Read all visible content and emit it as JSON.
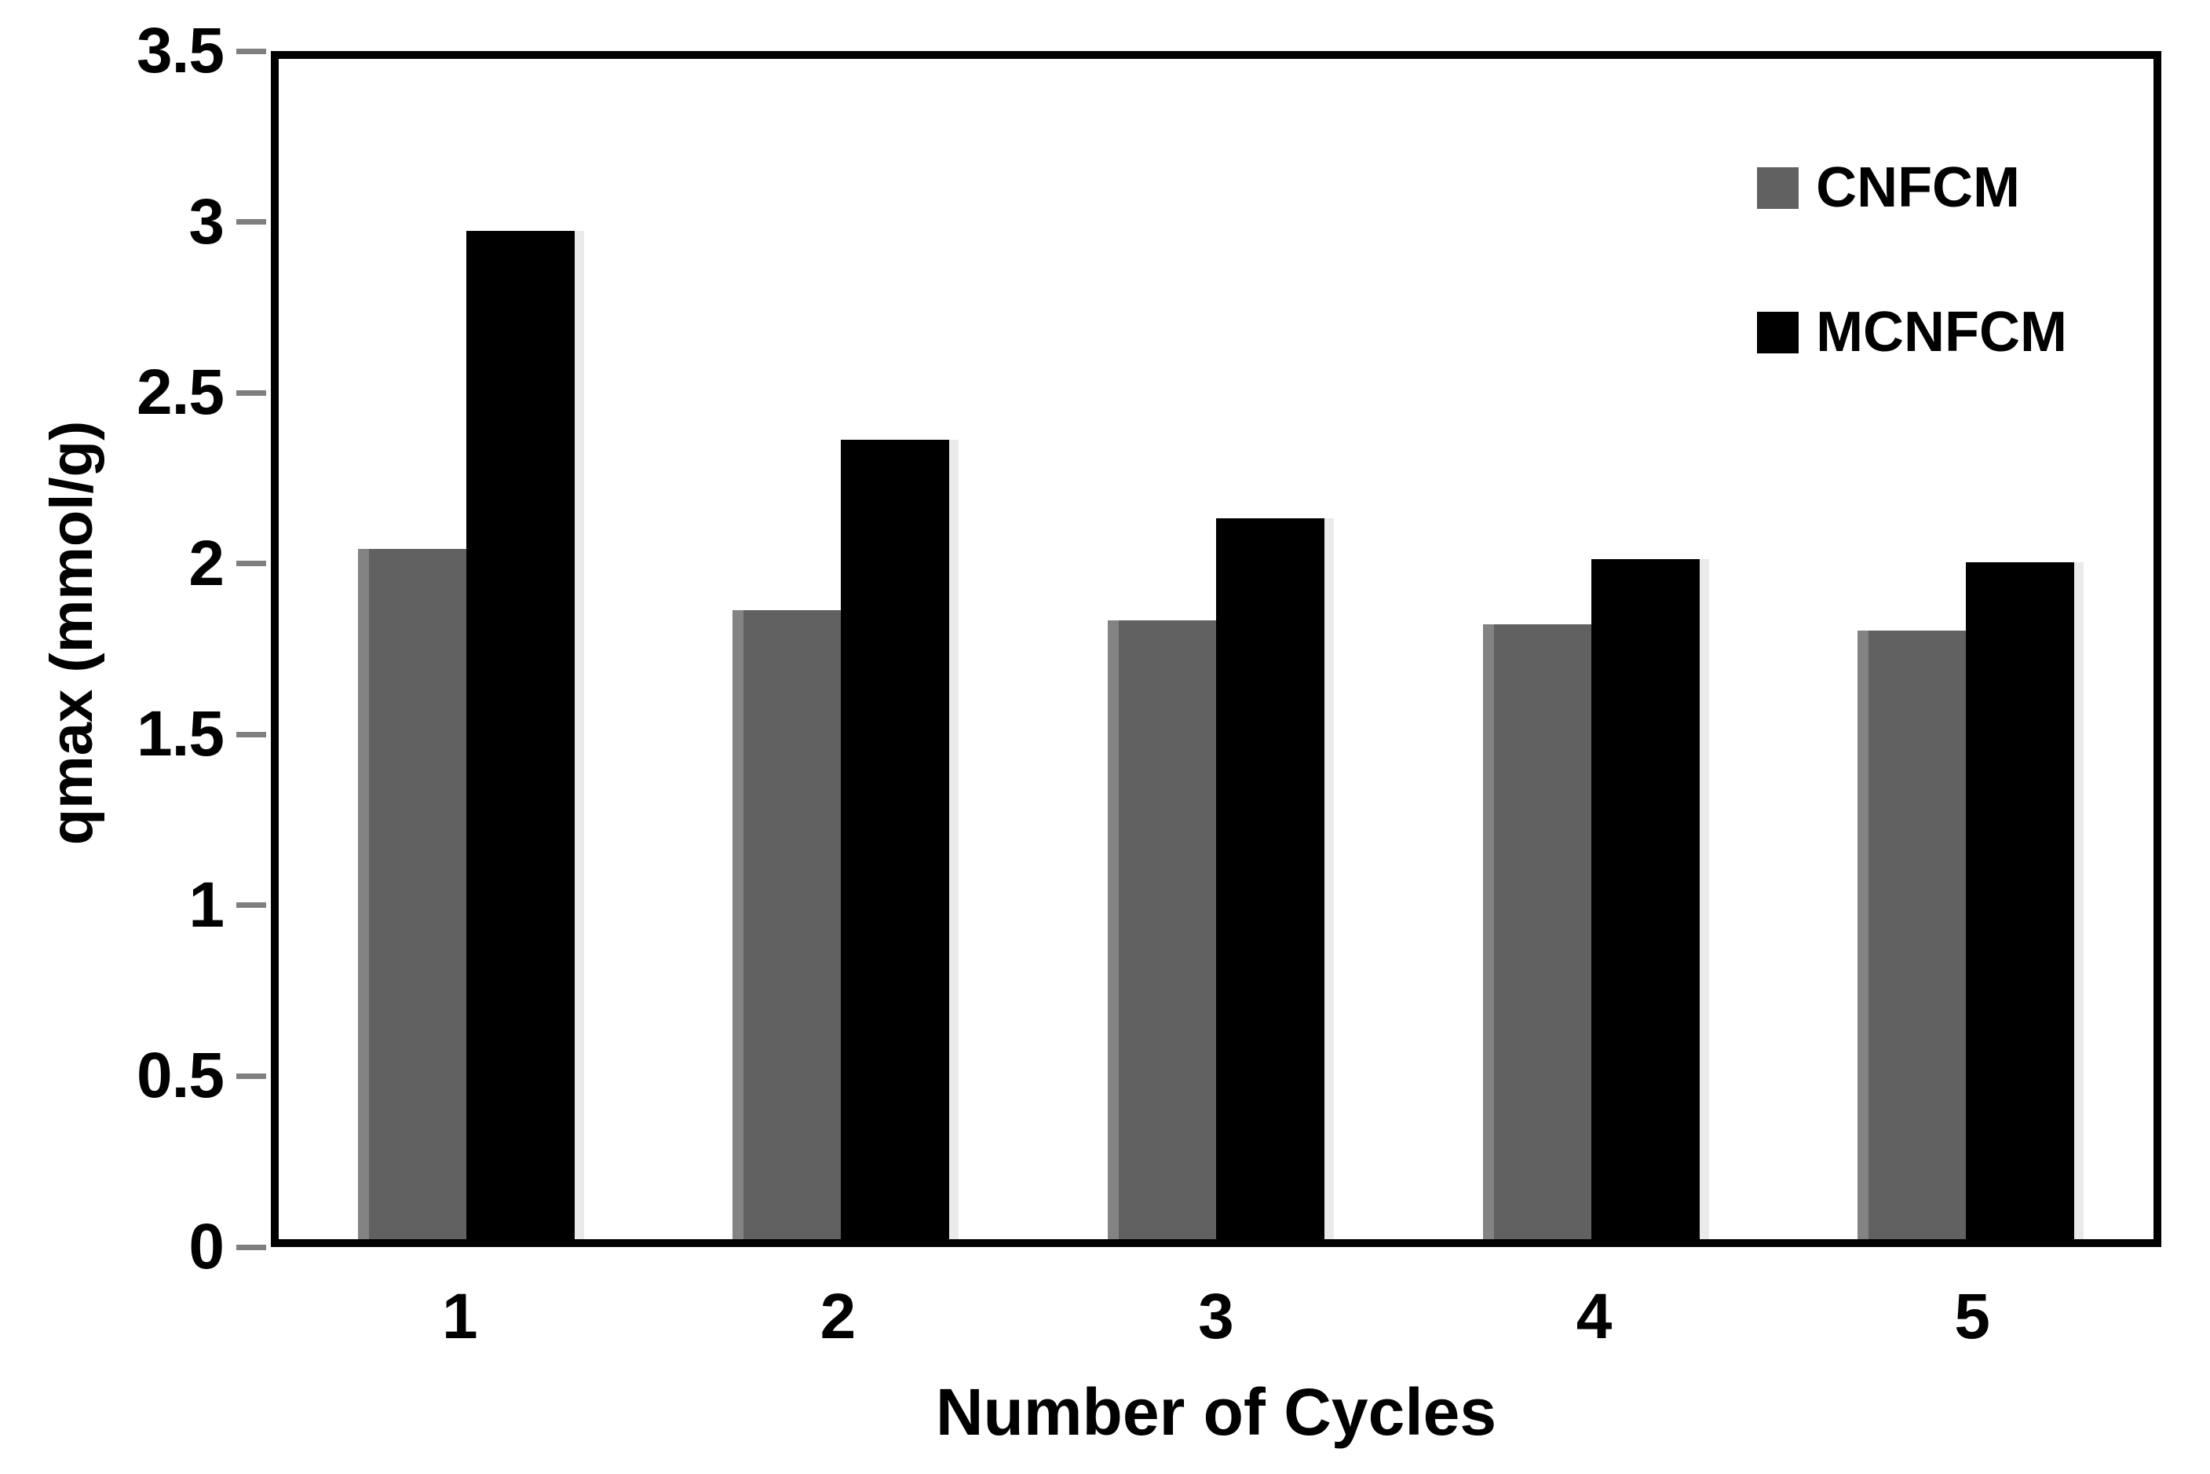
{
  "chart_data": {
    "type": "bar",
    "title": "",
    "xlabel": "Number of Cycles",
    "ylabel": "qmax (mmol/g)",
    "categories": [
      "1",
      "2",
      "3",
      "4",
      "5"
    ],
    "series": [
      {
        "name": "CNFCM",
        "color": "#616161",
        "values": [
          2.02,
          1.84,
          1.81,
          1.8,
          1.78
        ]
      },
      {
        "name": "MCNFCM",
        "color": "#000000",
        "values": [
          2.95,
          2.34,
          2.11,
          1.99,
          1.98
        ]
      }
    ],
    "ylim": [
      0,
      3.5
    ],
    "yticks": [
      "0",
      "0.5",
      "1",
      "1.5",
      "2",
      "2.5",
      "3",
      "3.5"
    ],
    "grid": false,
    "legend_position": "upper-right",
    "frame": true,
    "tick_color": "#7f7f7f",
    "frame_color": "#000000",
    "background_color": "#ffffff"
  }
}
